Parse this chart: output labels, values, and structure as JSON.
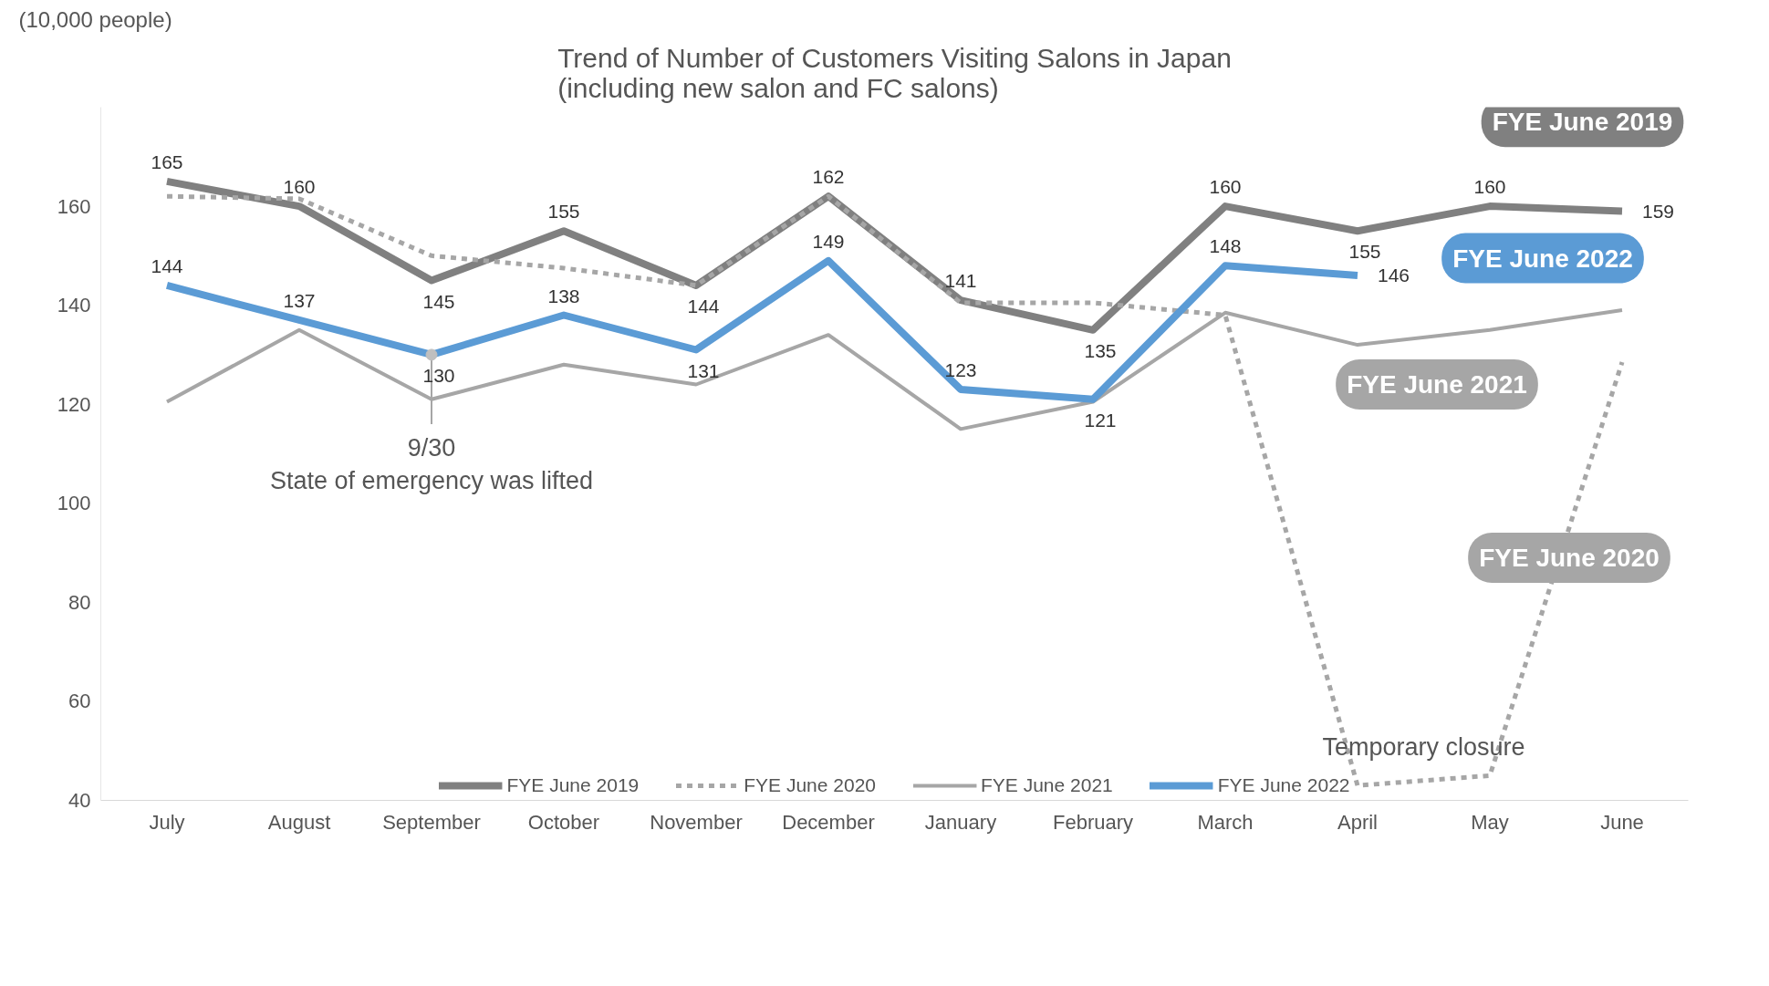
{
  "chart_data": {
    "type": "line",
    "title": "Trend of Number of Customers Visiting Salons in Japan\n(including new salon and FC salons)",
    "ylabel": "(10,000 people)",
    "categories": [
      "July",
      "August",
      "September",
      "October",
      "November",
      "December",
      "January",
      "February",
      "March",
      "April",
      "May",
      "June"
    ],
    "series": [
      {
        "name": "FYE June 2019",
        "color": "#808080",
        "values": [
          165,
          160,
          145,
          155,
          144,
          162,
          141,
          135,
          160,
          155,
          160,
          159
        ],
        "value_labels": [
          "165",
          "160",
          "145",
          "155",
          "144",
          "162",
          "141",
          "135",
          "160",
          "155",
          "160",
          "159"
        ],
        "line_style": "solid"
      },
      {
        "name": "FYE June 2020",
        "color": "#a6a6a6",
        "values": [
          162,
          161.5,
          150,
          147.5,
          144,
          162,
          140.5,
          140.5,
          138,
          43,
          45,
          128.5
        ],
        "line_style": "dashed"
      },
      {
        "name": "FYE June 2021",
        "color": "#a6a6a6",
        "values": [
          120.5,
          135,
          121,
          128,
          124,
          134,
          115,
          120.5,
          138.5,
          132,
          135,
          139
        ],
        "line_style": "solid"
      },
      {
        "name": "FYE June 2022",
        "color": "#5b9bd5",
        "values": [
          144,
          137,
          130,
          138,
          131,
          149,
          123,
          121,
          148,
          146,
          null,
          null
        ],
        "value_labels": [
          "144",
          "137",
          "130",
          "138",
          "131",
          "149",
          "123",
          "121",
          "148",
          "146",
          null,
          null
        ],
        "line_style": "solid"
      }
    ],
    "ylim": [
      40,
      180
    ],
    "yticks": [
      40,
      60,
      80,
      100,
      120,
      140,
      160
    ],
    "grid": false,
    "legend": "bottom",
    "marker": "none",
    "annotations": [
      {
        "text": "9/30\nState of emergency was lifted",
        "x": "September",
        "y": 130
      },
      {
        "text": "Temporary closure",
        "x": "April",
        "y": 43
      }
    ]
  }
}
